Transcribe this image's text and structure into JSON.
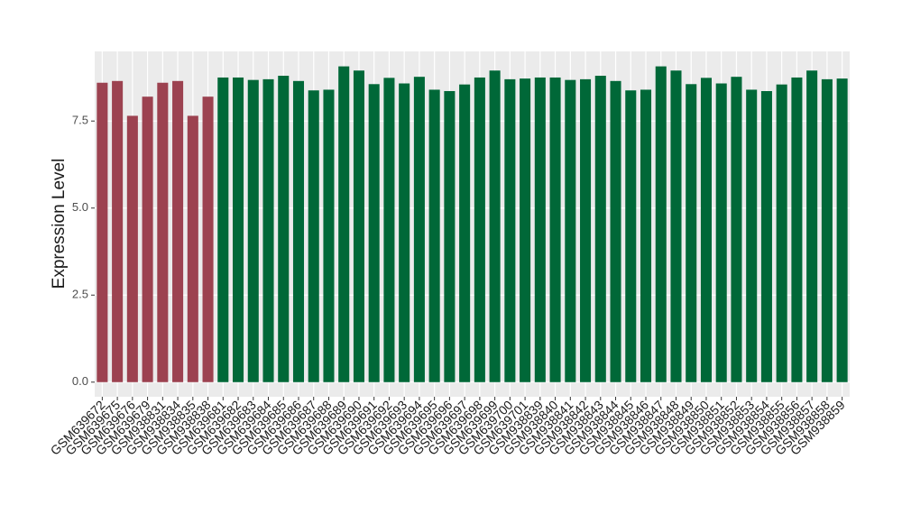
{
  "chart_data": {
    "type": "bar",
    "y_label": "Expression Level",
    "categories": [
      "GSM639672",
      "GSM639675",
      "GSM639676",
      "GSM639679",
      "GSM938831",
      "GSM938834",
      "GSM938835",
      "GSM938838",
      "GSM639681",
      "GSM639682",
      "GSM639683",
      "GSM639684",
      "GSM639685",
      "GSM639686",
      "GSM639687",
      "GSM639688",
      "GSM639689",
      "GSM639690",
      "GSM639691",
      "GSM639692",
      "GSM639693",
      "GSM639694",
      "GSM639695",
      "GSM639696",
      "GSM639697",
      "GSM639698",
      "GSM639699",
      "GSM639700",
      "GSM639701",
      "GSM938839",
      "GSM938840",
      "GSM938841",
      "GSM938842",
      "GSM938843",
      "GSM938844",
      "GSM938845",
      "GSM938846",
      "GSM938847",
      "GSM938848",
      "GSM938849",
      "GSM938850",
      "GSM938851",
      "GSM938852",
      "GSM938853",
      "GSM938854",
      "GSM938855",
      "GSM938856",
      "GSM938857",
      "GSM938858",
      "GSM938859"
    ],
    "values": [
      8.6,
      8.65,
      7.65,
      8.2,
      8.6,
      8.65,
      7.65,
      8.2,
      8.75,
      8.75,
      8.68,
      8.7,
      8.8,
      8.65,
      8.38,
      8.4,
      9.07,
      8.95,
      8.56,
      8.74,
      8.58,
      8.77,
      8.4,
      8.36,
      8.55,
      8.75,
      8.95,
      8.7,
      8.72,
      8.75,
      8.75,
      8.68,
      8.7,
      8.8,
      8.65,
      8.38,
      8.4,
      9.07,
      8.95,
      8.56,
      8.74,
      8.58,
      8.77,
      8.4,
      8.36,
      8.55,
      8.75,
      8.95,
      8.7,
      8.72
    ],
    "colors": [
      "#9c4250",
      "#9c4250",
      "#9c4250",
      "#9c4250",
      "#9c4250",
      "#9c4250",
      "#9c4250",
      "#9c4250",
      "#006838",
      "#006838",
      "#006838",
      "#006838",
      "#006838",
      "#006838",
      "#006838",
      "#006838",
      "#006838",
      "#006838",
      "#006838",
      "#006838",
      "#006838",
      "#006838",
      "#006838",
      "#006838",
      "#006838",
      "#006838",
      "#006838",
      "#006838",
      "#006838",
      "#006838",
      "#006838",
      "#006838",
      "#006838",
      "#006838",
      "#006838",
      "#006838",
      "#006838",
      "#006838",
      "#006838",
      "#006838",
      "#006838",
      "#006838",
      "#006838",
      "#006838",
      "#006838",
      "#006838",
      "#006838",
      "#006838",
      "#006838",
      "#006838"
    ],
    "ylim": [
      -0.42,
      9.5
    ],
    "yticks": [
      {
        "value": 0,
        "label": "0.0"
      },
      {
        "value": 2.5,
        "label": "2.5"
      },
      {
        "value": 5,
        "label": "5.0"
      },
      {
        "value": 7.5,
        "label": "7.5"
      }
    ],
    "grid": true
  }
}
